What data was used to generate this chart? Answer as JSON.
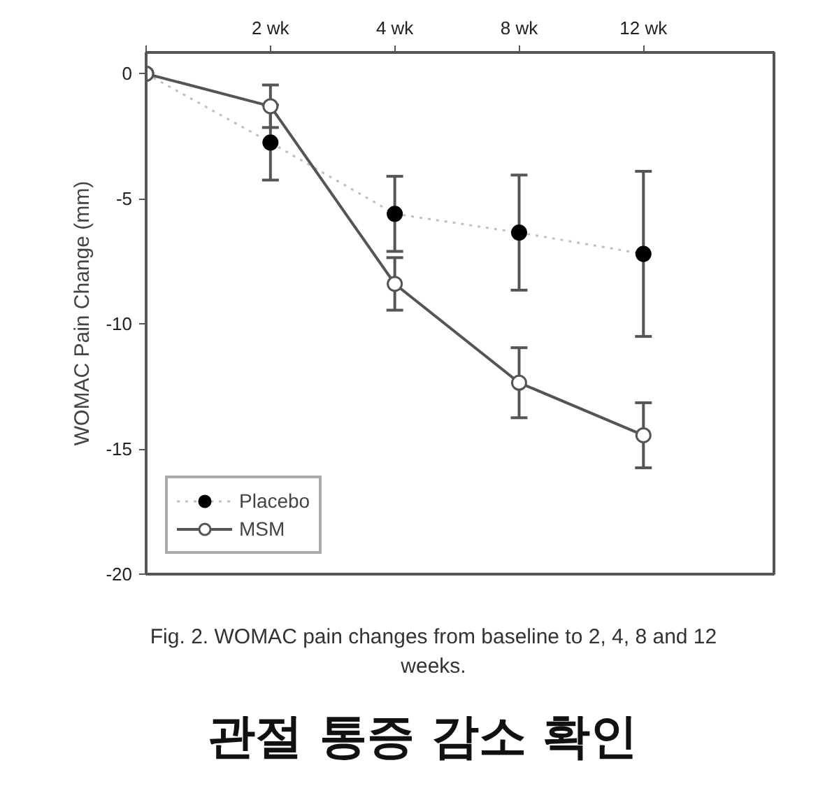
{
  "chart_data": {
    "type": "line",
    "ylabel": "WOMAC Pain Change (mm)",
    "categories": [
      null,
      "2 wk",
      "4 wk",
      "8 wk",
      "12 wk"
    ],
    "ylim": [
      -20,
      0.85
    ],
    "yticks": [
      0,
      -5,
      -10,
      -15,
      -20
    ],
    "series": [
      {
        "name": "Placebo",
        "color": "#000000",
        "marker": "circle",
        "line_style": "dotted",
        "values": [
          0,
          -2.75,
          -5.6,
          -6.35,
          -7.2
        ],
        "errors": [
          null,
          1.5,
          1.5,
          2.3,
          3.3
        ]
      },
      {
        "name": "MSM",
        "color": "#555555",
        "marker": "circle_open",
        "line_style": "solid",
        "values": [
          0,
          -1.3,
          -8.4,
          -12.35,
          -14.45
        ],
        "errors": [
          null,
          0.85,
          1.05,
          1.4,
          1.3
        ]
      }
    ],
    "legend": "bottom left",
    "grid": false,
    "annotations": [
      "Fig. 2. WOMAC pain changes from baseline to 2, 4, 8 and 12 weeks.",
      "관절 통증 감소 확인"
    ]
  }
}
